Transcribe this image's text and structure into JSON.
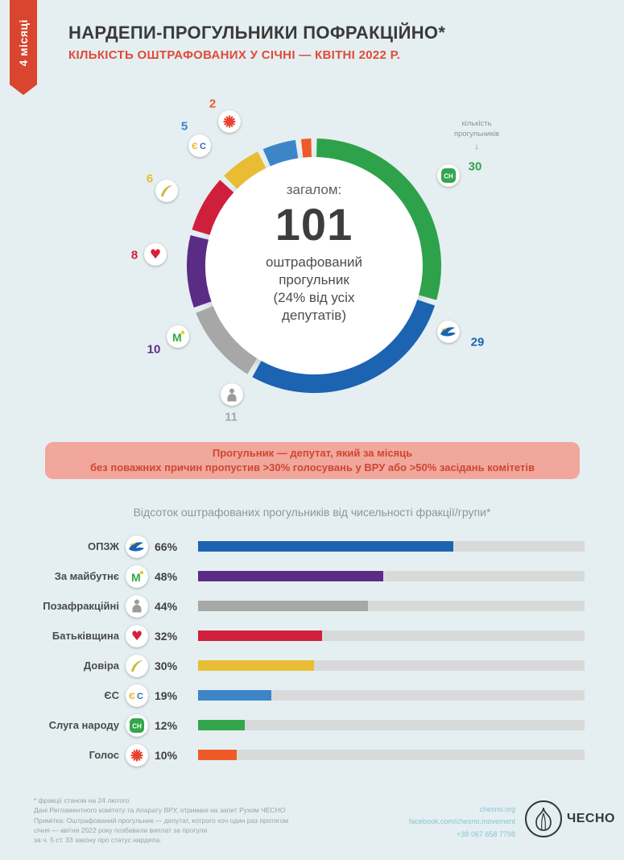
{
  "ribbon": {
    "label": "4 місяці"
  },
  "header": {
    "title": "НАРДЕПИ-ПРОГУЛЬНИКИ ПОФРАКЦІЙНО*",
    "subtitle": "КІЛЬКІСТЬ ОШТРАФОВАНИХ У СІЧНІ — КВІТНІ 2022 Р."
  },
  "donut": {
    "center_label": "загалом:",
    "total": "101",
    "description": "оштрафований\nпрогульник\n(24% від усіх\nдепутатів)",
    "axis_note": "кількість\nпрогульників",
    "axis_arrow": "↓"
  },
  "note_banner": {
    "line1": "Прогульник — депутат, який за місяць",
    "line2": "без поважних причин пропустив >30% голосувань у ВРУ або >50% засідань комітетів"
  },
  "chart_data": [
    {
      "type": "pie",
      "title": "Кількість оштрафованих у січні — квітні 2022 р.",
      "total": 101,
      "center_text": "загалом: 101 оштрафований прогульник (24% від усіх депутатів)",
      "legend_note": "кількість прогульників",
      "segments": [
        {
          "label": "Слуга народу",
          "value": 30,
          "color": "#2ea24b",
          "icon": "sn-badge"
        },
        {
          "label": "ОПЗЖ",
          "value": 29,
          "color": "#1c63b2",
          "icon": "dove"
        },
        {
          "label": "Позафракційні",
          "value": 11,
          "color": "#a7a7a7",
          "icon": "person"
        },
        {
          "label": "За майбутнє",
          "value": 10,
          "color": "#5b2c86",
          "icon": "m-leaf"
        },
        {
          "label": "Батьківщина",
          "value": 8,
          "color": "#d01f3c",
          "icon": "heart"
        },
        {
          "label": "Довіра",
          "value": 6,
          "color": "#e8bd33",
          "icon": "feather"
        },
        {
          "label": "ЄС",
          "value": 5,
          "color": "#3c86c8",
          "icon": "es-letters"
        },
        {
          "label": "Голос",
          "value": 2,
          "color": "#ef5a28",
          "icon": "burst"
        }
      ]
    },
    {
      "type": "bar",
      "title": "Відсоток оштрафованих прогульників від чисельності фракції/групи*",
      "unit": "%",
      "xlim": [
        0,
        100
      ],
      "categories": [
        "ОПЗЖ",
        "За майбутнє",
        "Позафракційні",
        "Батьківщина",
        "Довіра",
        "ЄС",
        "Слуга народу",
        "Голос"
      ],
      "values": [
        66,
        48,
        44,
        32,
        30,
        19,
        12,
        10
      ],
      "colors": [
        "#1c63b2",
        "#5b2c86",
        "#a7a7a7",
        "#d01f3c",
        "#e8bd33",
        "#3c86c8",
        "#33a64c",
        "#ef5a28"
      ],
      "icons": [
        "dove",
        "m-leaf",
        "person",
        "heart",
        "feather",
        "es-letters",
        "sn-badge",
        "burst"
      ],
      "track_color": "#d8dad9"
    }
  ],
  "footer": {
    "notes": [
      "* фракції станом на 24 лютого",
      "Дані Регламентного комітету та Апарату ВРУ, отримані на запит Рухом ЧЕСНО",
      "Примітка: Оштрафований прогульник — депутат, котрого хоч один раз протягом",
      "січня — квітня 2022 року позбавили виплат за прогули",
      "за ч. 5 ст. 33 закону про статус нардепа."
    ],
    "contacts": [
      "chesno.org",
      "facebook.com/chesno.movement",
      "+38 067 658 7798"
    ],
    "logo_text": "ЧЕСНО"
  }
}
